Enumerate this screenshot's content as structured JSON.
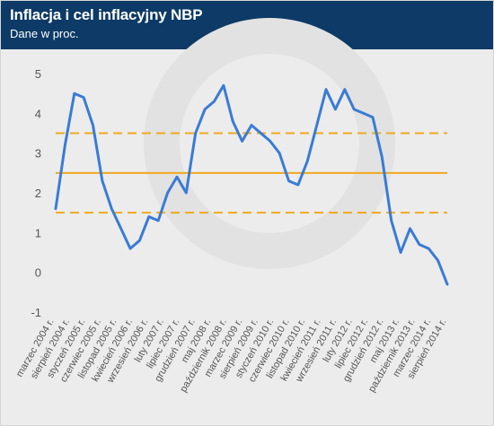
{
  "header": {
    "title": "Inflacja i cel inflacyjny NBP",
    "subtitle": "Dane w proc."
  },
  "colors": {
    "header_bg": "#0d3a66",
    "line": "#3a7bd5",
    "target": "#f0a81e",
    "background": "#ececec"
  },
  "chart_data": {
    "type": "line",
    "title": "Inflacja i cel inflacyjny NBP",
    "subtitle": "Dane w proc.",
    "ylim": [
      -1,
      5
    ],
    "yticks": [
      -1,
      0,
      1,
      2,
      3,
      4,
      5
    ],
    "grid": false,
    "x_tick_labels": [
      "marzec 2004 r.",
      "sierpień 2004 r.",
      "styczeń 2005 r.",
      "czerwiec 2005 r.",
      "listopad 2005 r.",
      "kwiecień 2006 r.",
      "wrzesień 2006 r.",
      "luty 2007 r.",
      "lipiec 2007 r.",
      "grudzień 2007 r.",
      "maj 2008 r.",
      "październik 2008 r.",
      "marzec 2009 r.",
      "sierpień 2009 r.",
      "styczeń 2010 r.",
      "czerwiec 2010 r.",
      "listopad 2010 r.",
      "kwiecień 2011 r.",
      "wrzesień 2011 r.",
      "luty 2012 r.",
      "lipiec 2012 r.",
      "grudzień 2012 r.",
      "maj 2013 r.",
      "październik 2013 r.",
      "marzec 2014 r.",
      "sierpień 2014 r."
    ],
    "series": [
      {
        "values": [
          1.6,
          3.2,
          4.5,
          4.4,
          3.7,
          2.3,
          1.6,
          1.1,
          0.6,
          0.8,
          1.4,
          1.3,
          2.0,
          2.4,
          2.0,
          3.5,
          4.1,
          4.3,
          4.7,
          3.8,
          3.3,
          3.7,
          3.5,
          3.3,
          3.0,
          2.3,
          2.2,
          2.8,
          3.7,
          4.6,
          4.1,
          4.6,
          4.1,
          4.0,
          3.9,
          2.9,
          1.3,
          0.5,
          1.1,
          0.7,
          0.6,
          0.3,
          -0.3
        ]
      }
    ],
    "target_lines": [
      {
        "value": 2.5,
        "style": "solid"
      },
      {
        "value": 3.5,
        "style": "dashed"
      },
      {
        "value": 1.5,
        "style": "dashed"
      }
    ]
  }
}
